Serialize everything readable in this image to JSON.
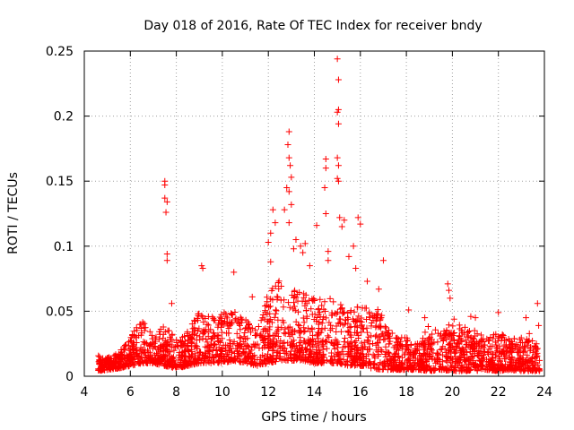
{
  "chart_data": {
    "type": "scatter",
    "title": "Day 018 of 2016, Rate Of TEC Index for receiver bndy",
    "xlabel": "GPS time / hours",
    "ylabel": "ROTI / TECUs",
    "xlim": [
      4,
      24
    ],
    "ylim": [
      0,
      0.25
    ],
    "xticks": [
      4,
      6,
      8,
      10,
      12,
      14,
      16,
      18,
      20,
      22,
      24
    ],
    "yticks": [
      0,
      0.05,
      0.1,
      0.15,
      0.2,
      0.25
    ],
    "xtick_labels": [
      "4",
      "6",
      "8",
      "10",
      "12",
      "14",
      "16",
      "18",
      "20",
      "22",
      "24"
    ],
    "ytick_labels": [
      "0",
      "0.05",
      "0.1",
      "0.15",
      "0.2",
      "0.25"
    ],
    "grid": true,
    "marker": "+",
    "color": "#ff0000",
    "x_data_range": [
      4.6,
      23.8
    ],
    "series": [
      {
        "name": "ROTI",
        "notable_points": [
          {
            "x": 7.5,
            "y": 0.15
          },
          {
            "x": 7.5,
            "y": 0.147
          },
          {
            "x": 7.5,
            "y": 0.137
          },
          {
            "x": 7.6,
            "y": 0.134
          },
          {
            "x": 7.55,
            "y": 0.126
          },
          {
            "x": 7.6,
            "y": 0.094
          },
          {
            "x": 7.6,
            "y": 0.089
          },
          {
            "x": 7.8,
            "y": 0.056
          },
          {
            "x": 9.1,
            "y": 0.085
          },
          {
            "x": 9.15,
            "y": 0.083
          },
          {
            "x": 10.5,
            "y": 0.08
          },
          {
            "x": 11.3,
            "y": 0.061
          },
          {
            "x": 12.0,
            "y": 0.103
          },
          {
            "x": 12.1,
            "y": 0.11
          },
          {
            "x": 12.1,
            "y": 0.088
          },
          {
            "x": 12.3,
            "y": 0.118
          },
          {
            "x": 12.2,
            "y": 0.128
          },
          {
            "x": 12.9,
            "y": 0.188
          },
          {
            "x": 12.85,
            "y": 0.178
          },
          {
            "x": 12.9,
            "y": 0.168
          },
          {
            "x": 12.95,
            "y": 0.162
          },
          {
            "x": 12.8,
            "y": 0.145
          },
          {
            "x": 12.9,
            "y": 0.142
          },
          {
            "x": 13.0,
            "y": 0.153
          },
          {
            "x": 13.0,
            "y": 0.132
          },
          {
            "x": 12.7,
            "y": 0.128
          },
          {
            "x": 12.9,
            "y": 0.118
          },
          {
            "x": 13.2,
            "y": 0.105
          },
          {
            "x": 13.1,
            "y": 0.098
          },
          {
            "x": 13.4,
            "y": 0.1
          },
          {
            "x": 13.6,
            "y": 0.102
          },
          {
            "x": 13.5,
            "y": 0.095
          },
          {
            "x": 13.8,
            "y": 0.085
          },
          {
            "x": 14.1,
            "y": 0.116
          },
          {
            "x": 14.5,
            "y": 0.167
          },
          {
            "x": 14.5,
            "y": 0.16
          },
          {
            "x": 14.45,
            "y": 0.145
          },
          {
            "x": 14.5,
            "y": 0.125
          },
          {
            "x": 14.6,
            "y": 0.096
          },
          {
            "x": 14.6,
            "y": 0.089
          },
          {
            "x": 15.0,
            "y": 0.244
          },
          {
            "x": 15.05,
            "y": 0.228
          },
          {
            "x": 15.05,
            "y": 0.205
          },
          {
            "x": 15.0,
            "y": 0.203
          },
          {
            "x": 15.05,
            "y": 0.194
          },
          {
            "x": 15.0,
            "y": 0.168
          },
          {
            "x": 15.05,
            "y": 0.162
          },
          {
            "x": 15.0,
            "y": 0.152
          },
          {
            "x": 15.05,
            "y": 0.15
          },
          {
            "x": 15.1,
            "y": 0.122
          },
          {
            "x": 15.2,
            "y": 0.115
          },
          {
            "x": 15.3,
            "y": 0.12
          },
          {
            "x": 15.5,
            "y": 0.092
          },
          {
            "x": 15.7,
            "y": 0.1
          },
          {
            "x": 15.9,
            "y": 0.122
          },
          {
            "x": 16.0,
            "y": 0.117
          },
          {
            "x": 15.8,
            "y": 0.083
          },
          {
            "x": 16.3,
            "y": 0.073
          },
          {
            "x": 17.0,
            "y": 0.089
          },
          {
            "x": 16.8,
            "y": 0.067
          },
          {
            "x": 18.1,
            "y": 0.051
          },
          {
            "x": 18.8,
            "y": 0.045
          },
          {
            "x": 19.8,
            "y": 0.071
          },
          {
            "x": 19.85,
            "y": 0.066
          },
          {
            "x": 19.9,
            "y": 0.06
          },
          {
            "x": 20.8,
            "y": 0.046
          },
          {
            "x": 21.0,
            "y": 0.045
          },
          {
            "x": 22.0,
            "y": 0.049
          },
          {
            "x": 23.2,
            "y": 0.045
          },
          {
            "x": 23.7,
            "y": 0.056
          },
          {
            "x": 23.75,
            "y": 0.039
          }
        ],
        "envelope": {
          "x": [
            4.6,
            5.0,
            5.5,
            6.0,
            6.5,
            7.0,
            7.5,
            8.0,
            8.5,
            9.0,
            9.5,
            10.0,
            10.5,
            11.0,
            11.5,
            12.0,
            12.5,
            13.0,
            13.5,
            14.0,
            14.5,
            15.0,
            15.5,
            16.0,
            16.5,
            17.0,
            17.5,
            18.0,
            18.5,
            19.0,
            19.5,
            20.0,
            20.5,
            21.0,
            21.5,
            22.0,
            22.5,
            23.0,
            23.5,
            23.8
          ],
          "y_low": [
            0.004,
            0.005,
            0.006,
            0.008,
            0.01,
            0.01,
            0.008,
            0.006,
            0.008,
            0.01,
            0.01,
            0.01,
            0.012,
            0.01,
            0.008,
            0.01,
            0.012,
            0.012,
            0.012,
            0.01,
            0.01,
            0.01,
            0.008,
            0.008,
            0.006,
            0.005,
            0.005,
            0.005,
            0.005,
            0.004,
            0.005,
            0.004,
            0.004,
            0.004,
            0.005,
            0.004,
            0.005,
            0.004,
            0.004,
            0.004
          ],
          "y_high": [
            0.016,
            0.014,
            0.018,
            0.03,
            0.045,
            0.03,
            0.04,
            0.028,
            0.035,
            0.05,
            0.045,
            0.05,
            0.05,
            0.045,
            0.035,
            0.065,
            0.075,
            0.07,
            0.065,
            0.06,
            0.06,
            0.06,
            0.05,
            0.055,
            0.06,
            0.045,
            0.03,
            0.03,
            0.025,
            0.04,
            0.035,
            0.045,
            0.038,
            0.035,
            0.03,
            0.035,
            0.03,
            0.03,
            0.035,
            0.02
          ]
        }
      }
    ]
  }
}
